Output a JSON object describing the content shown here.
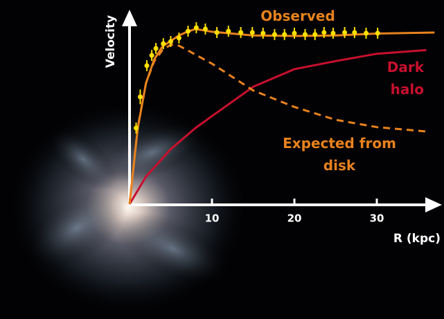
{
  "chart_data": {
    "type": "line",
    "ylabel": "Velocity",
    "xlabel": "R (kpc)",
    "xlim": [
      0,
      37.6
    ],
    "xticks": [
      10,
      20,
      30
    ],
    "ylim": [
      0,
      100
    ],
    "series": [
      {
        "name": "Observed",
        "color": "#e8821e",
        "dash": false,
        "x": [
          0,
          1,
          2,
          3,
          4,
          5,
          6,
          7,
          8,
          10,
          15,
          20,
          25,
          30,
          37
        ],
        "values": [
          0,
          41.5,
          66,
          79,
          86,
          89,
          92,
          94,
          95.5,
          94,
          92,
          91.7,
          92,
          93,
          93.6
        ]
      },
      {
        "name": "Dark halo",
        "color": "#c8102e",
        "dash": false,
        "x": [
          0,
          2,
          5,
          8,
          10,
          15,
          20,
          25,
          30,
          36
        ],
        "values": [
          0,
          15,
          30,
          41.5,
          48,
          64,
          73.6,
          78,
          82,
          84
        ]
      },
      {
        "name": "Expected from disk",
        "color": "#e8821e",
        "dash": true,
        "x": [
          0,
          1,
          2,
          3,
          4,
          5,
          6,
          7,
          8,
          10,
          15,
          20,
          25,
          30,
          36
        ],
        "values": [
          0,
          42,
          66,
          78,
          84,
          87,
          86.4,
          84,
          81.5,
          76.6,
          62,
          53,
          46,
          42,
          39.6
        ]
      }
    ],
    "points": {
      "color": "#ffe000",
      "x": [
        0.8,
        1.3,
        2.1,
        2.7,
        3.2,
        4.1,
        5.0,
        6.0,
        7.1,
        8.1,
        9.2,
        10.6,
        12.0,
        13.5,
        14.9,
        16.2,
        17.6,
        18.8,
        20.0,
        21.3,
        22.5,
        23.6,
        24.7,
        26.1,
        27.3,
        28.7,
        30.1
      ],
      "values": [
        41.5,
        58.5,
        75.5,
        81.1,
        84.9,
        87.5,
        88.7,
        90.6,
        94.3,
        96.2,
        95.5,
        93.6,
        94.3,
        93.6,
        93.6,
        93.2,
        92.5,
        92.5,
        93.2,
        92.5,
        92.5,
        93.6,
        93.2,
        93.6,
        93.6,
        93.2,
        93.2
      ],
      "errors": [
        3,
        4,
        3,
        3,
        3,
        3,
        3,
        3,
        3,
        3,
        3,
        3,
        3,
        3,
        3,
        3,
        3,
        3,
        3,
        3,
        3,
        3,
        3,
        3,
        3,
        3,
        3
      ]
    }
  }
}
